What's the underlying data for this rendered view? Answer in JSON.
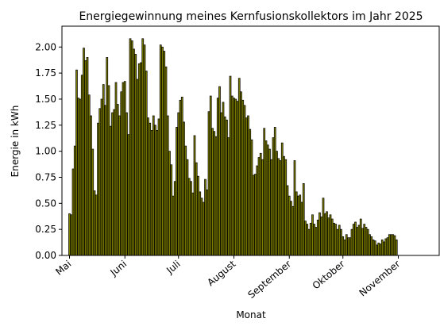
{
  "chart_data": {
    "type": "bar",
    "title": "Energiegewinnung meines Kernfusionskollektors im Jahr 2025",
    "xlabel": "Monat",
    "ylabel": "Energie in kWh",
    "ylim": [
      0,
      2.2
    ],
    "yticks": [
      "0.00",
      "0.25",
      "0.50",
      "0.75",
      "1.00",
      "1.25",
      "1.50",
      "1.75",
      "2.00"
    ],
    "xticks": [
      "Mai",
      "Juni",
      "Juli",
      "August",
      "September",
      "Oktober",
      "November"
    ],
    "grid": false,
    "legend": "none",
    "bar_color": "#808000",
    "edge_color": "#000000",
    "x_start": "2025-05-01",
    "values": [
      0.4,
      0.39,
      0.83,
      1.05,
      1.78,
      1.51,
      1.5,
      1.73,
      1.99,
      1.87,
      1.9,
      1.54,
      1.34,
      1.02,
      0.62,
      0.58,
      1.27,
      1.41,
      1.5,
      1.64,
      1.44,
      1.9,
      1.63,
      1.24,
      1.37,
      1.4,
      1.66,
      1.45,
      1.34,
      1.57,
      1.66,
      1.67,
      1.37,
      1.16,
      2.08,
      2.06,
      1.98,
      1.93,
      1.69,
      1.84,
      1.85,
      2.08,
      2.02,
      1.77,
      1.32,
      1.27,
      1.2,
      1.34,
      1.25,
      1.2,
      1.31,
      2.02,
      2.0,
      1.96,
      1.81,
      1.34,
      1.0,
      0.87,
      0.57,
      0.71,
      1.23,
      1.37,
      1.49,
      1.52,
      1.28,
      1.05,
      0.92,
      0.74,
      0.71,
      0.6,
      1.15,
      0.89,
      0.76,
      0.61,
      0.55,
      0.51,
      0.73,
      0.63,
      1.38,
      1.53,
      1.22,
      1.19,
      1.14,
      1.51,
      1.62,
      1.37,
      1.47,
      1.33,
      1.3,
      1.13,
      1.72,
      1.53,
      1.51,
      1.5,
      1.48,
      1.7,
      1.57,
      1.49,
      1.44,
      1.32,
      1.34,
      1.21,
      1.11,
      0.77,
      0.78,
      0.86,
      0.94,
      0.98,
      0.92,
      1.22,
      1.1,
      1.06,
      1.02,
      0.92,
      1.13,
      1.23,
      1.0,
      0.93,
      0.91,
      1.08,
      0.95,
      0.92,
      0.67,
      0.57,
      0.52,
      0.47,
      0.91,
      0.61,
      0.57,
      0.58,
      0.51,
      0.69,
      0.33,
      0.3,
      0.25,
      0.31,
      0.39,
      0.3,
      0.27,
      0.34,
      0.41,
      0.37,
      0.55,
      0.4,
      0.42,
      0.36,
      0.39,
      0.35,
      0.31,
      0.3,
      0.25,
      0.29,
      0.25,
      0.18,
      0.15,
      0.2,
      0.17,
      0.17,
      0.25,
      0.3,
      0.32,
      0.27,
      0.29,
      0.35,
      0.26,
      0.3,
      0.27,
      0.25,
      0.2,
      0.18,
      0.15,
      0.14,
      0.1,
      0.12,
      0.11,
      0.15,
      0.13,
      0.16,
      0.17,
      0.2,
      0.2,
      0.2,
      0.19,
      0.15
    ]
  }
}
